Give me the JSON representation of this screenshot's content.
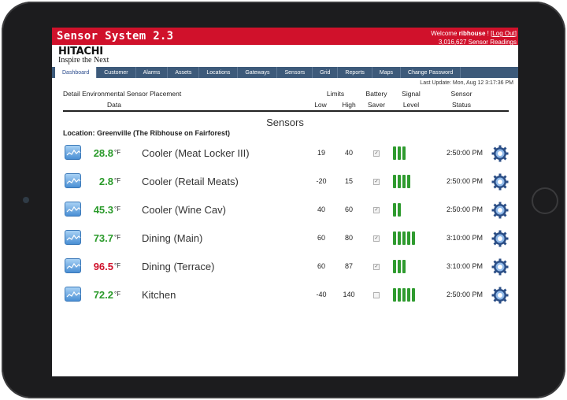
{
  "header": {
    "app_title": "Sensor System 2.3",
    "welcome_prefix": "Welcome ",
    "username": "ribhouse",
    "welcome_suffix": " ! [",
    "logout_label": "Log Out",
    "logout_suffix": "]",
    "readings": "3,016,627 Sensor Readings",
    "brand_name": "HITACHI",
    "brand_tagline": "Inspire the Next"
  },
  "nav": {
    "tabs": [
      "Dashboard",
      "Customer",
      "Alarms",
      "Assets",
      "Locations",
      "Gateways",
      "Sensors",
      "Grid",
      "Reports",
      "Maps",
      "Change Password"
    ],
    "active_index": 0
  },
  "last_update": "Last Update: Mon, Aug 12 3:17:36 PM",
  "columns": {
    "detail_line1": "Detail Environmental Sensor Placement",
    "detail_line2": "Data",
    "limits": "Limits",
    "low": "Low",
    "high": "High",
    "battery_line1": "Battery",
    "battery_line2": "Saver",
    "signal_line1": "Signal",
    "signal_line2": "Level",
    "status_line1": "Sensor",
    "status_line2": "Status"
  },
  "section_title": "Sensors",
  "location": "Location: Greenville (The Ribhouse on Fairforest)",
  "colors": {
    "header_red": "#d0112b",
    "nav_blue": "#3d5a7a",
    "value_green": "#2a9a2a",
    "value_red": "#d0112b",
    "signal_green": "#2f9b2f"
  },
  "sensors": [
    {
      "value": "28.8",
      "unit": "°F",
      "status": "normal",
      "name": "Cooler (Meat Locker III)",
      "low": "19",
      "high": "40",
      "battery_saver": true,
      "signal_bars": 3,
      "time": "2:50:00 PM"
    },
    {
      "value": "2.8",
      "unit": "°F",
      "status": "normal",
      "name": "Cooler (Retail Meats)",
      "low": "-20",
      "high": "15",
      "battery_saver": true,
      "signal_bars": 4,
      "time": "2:50:00 PM"
    },
    {
      "value": "45.3",
      "unit": "°F",
      "status": "normal",
      "name": "Cooler (Wine Cav)",
      "low": "40",
      "high": "60",
      "battery_saver": true,
      "signal_bars": 2,
      "time": "2:50:00 PM"
    },
    {
      "value": "73.7",
      "unit": "°F",
      "status": "normal",
      "name": "Dining (Main)",
      "low": "60",
      "high": "80",
      "battery_saver": true,
      "signal_bars": 5,
      "time": "3:10:00 PM"
    },
    {
      "value": "96.5",
      "unit": "°F",
      "status": "alarm",
      "name": "Dining (Terrace)",
      "low": "60",
      "high": "87",
      "battery_saver": true,
      "signal_bars": 3,
      "time": "3:10:00 PM"
    },
    {
      "value": "72.2",
      "unit": "°F",
      "status": "normal",
      "name": "Kitchen",
      "low": "-40",
      "high": "140",
      "battery_saver": false,
      "signal_bars": 5,
      "time": "2:50:00 PM"
    }
  ]
}
